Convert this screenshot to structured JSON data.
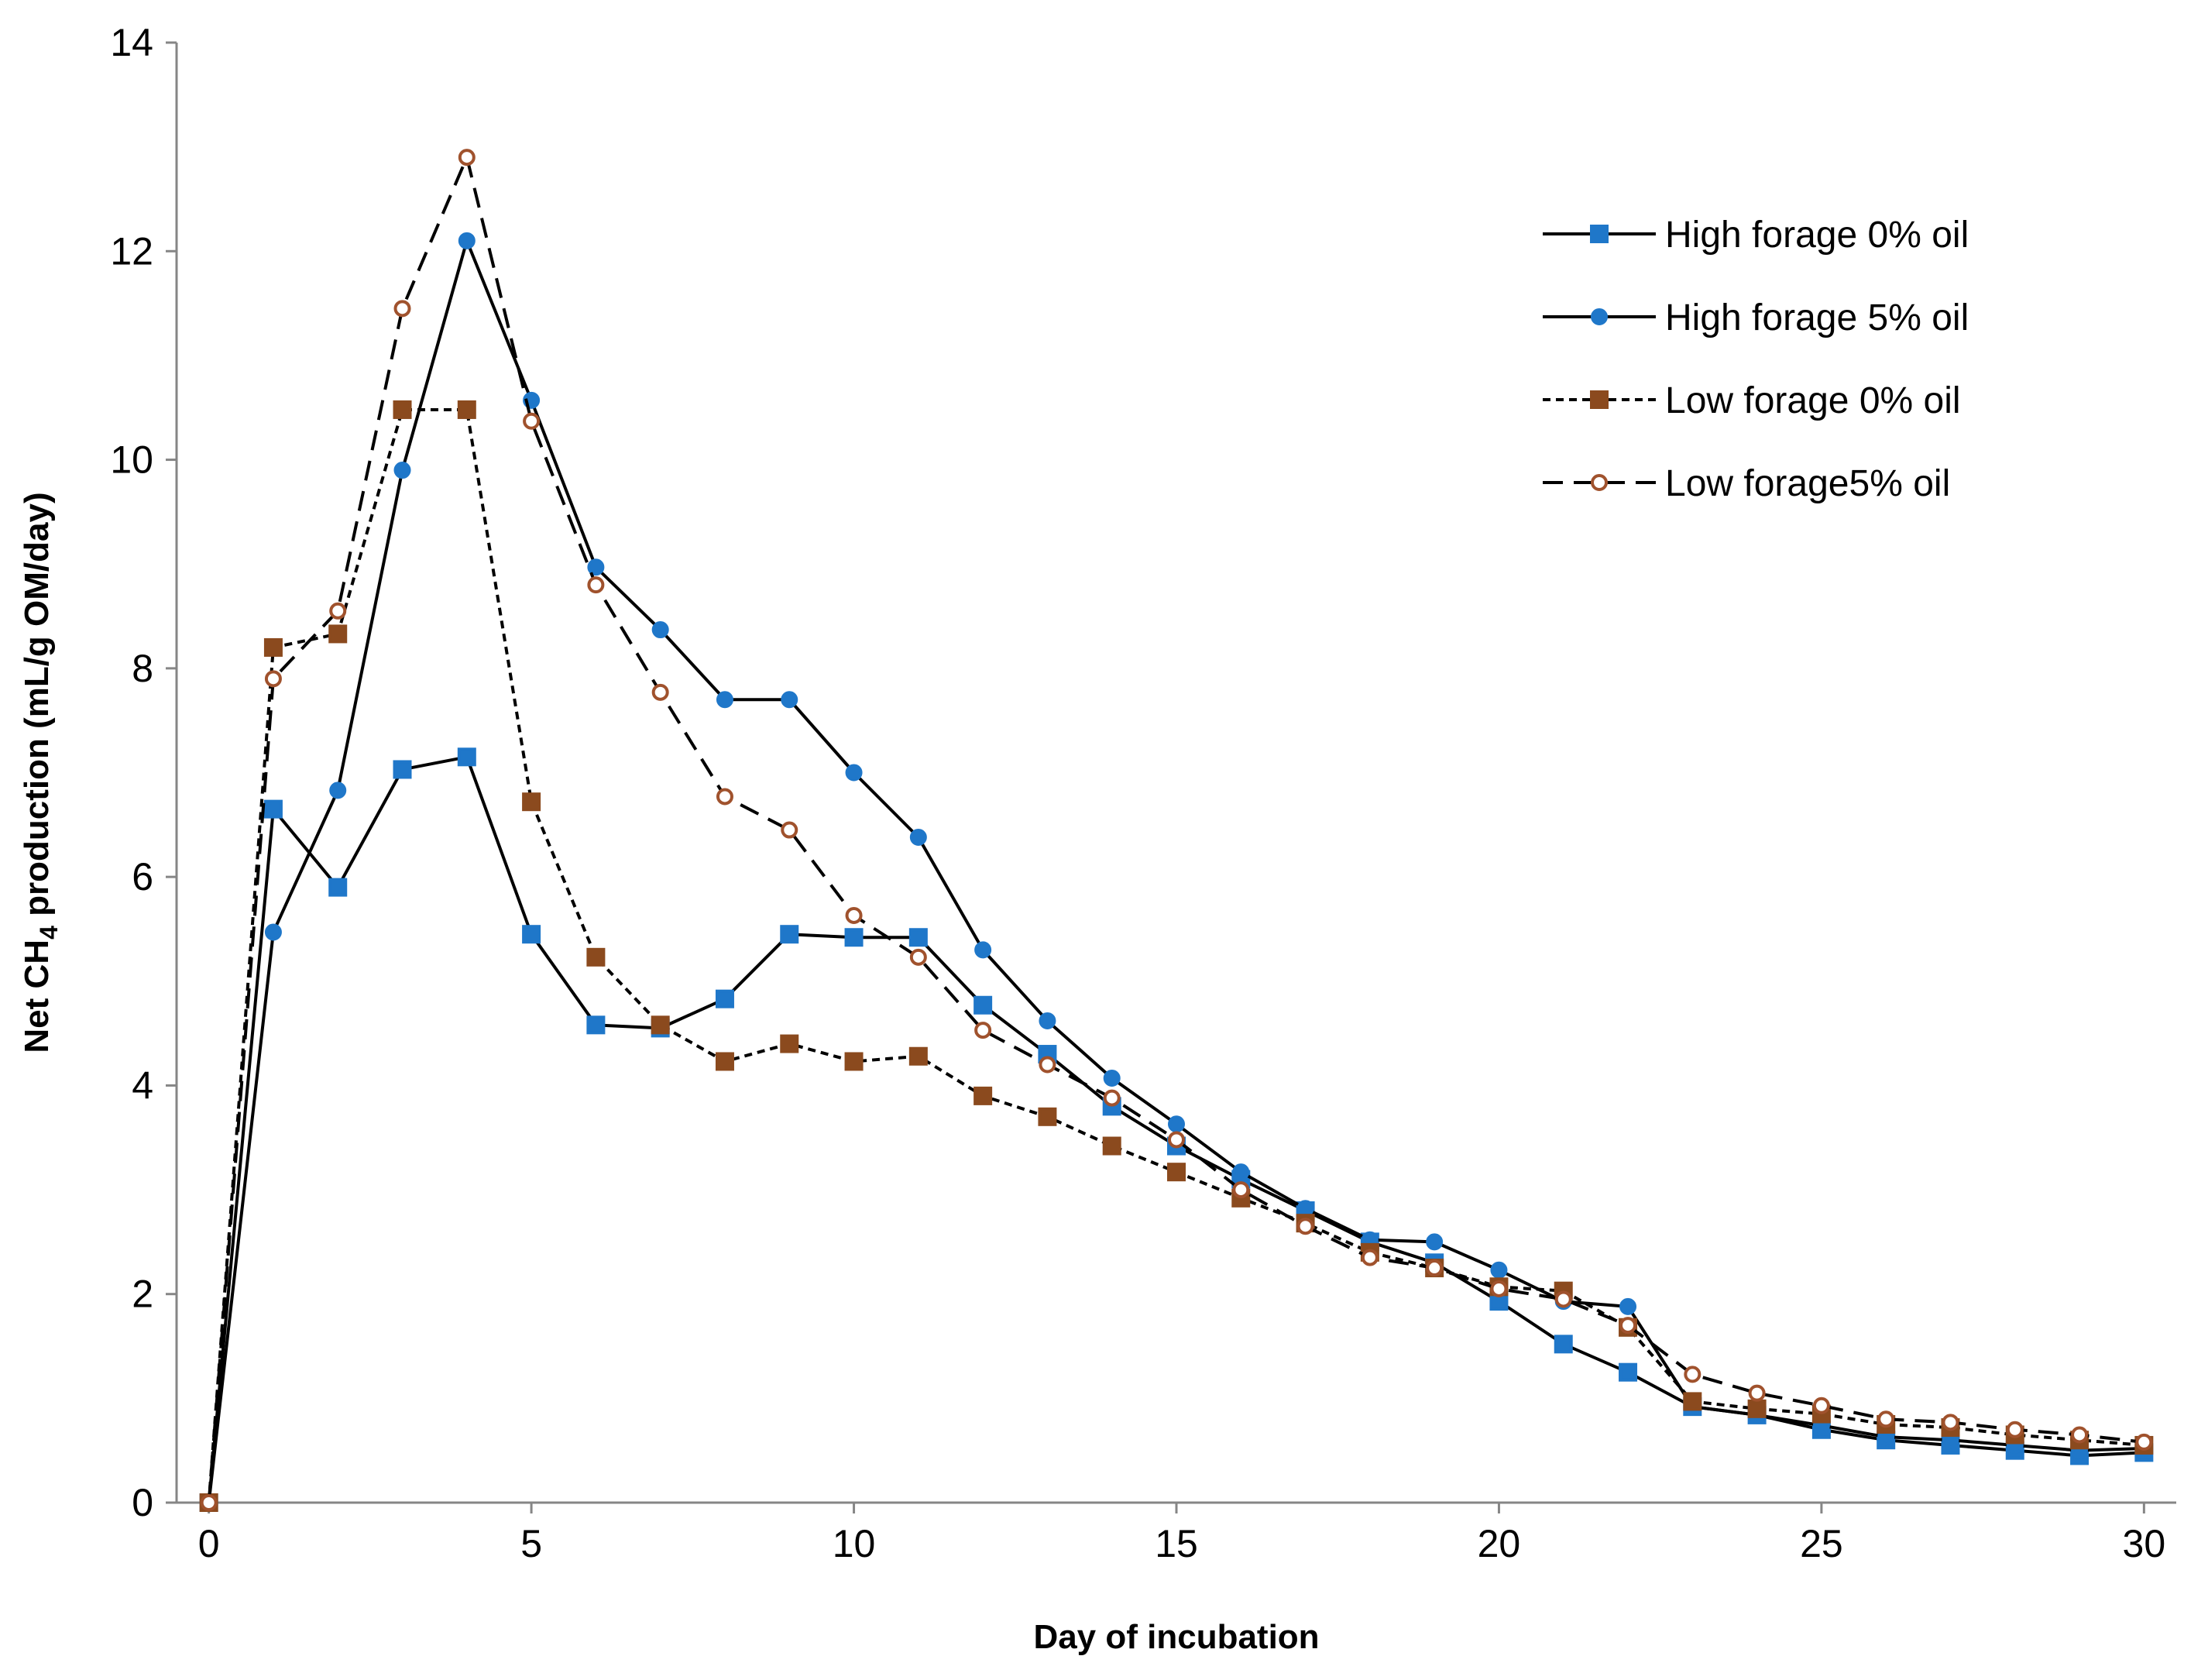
{
  "chart_data": {
    "type": "line",
    "title": "",
    "xlabel": "Day of incubation",
    "ylabel_prefix": "Net CH",
    "ylabel_subscript": "4",
    "ylabel_suffix": " production (mL/g OM/day)",
    "xlim": [
      -0.5,
      30.5
    ],
    "ylim": [
      0,
      14
    ],
    "xticks": [
      0,
      5,
      10,
      15,
      20,
      25,
      30
    ],
    "yticks": [
      0,
      2,
      4,
      6,
      8,
      10,
      12,
      14
    ],
    "grid": false,
    "legend_position": "top-right",
    "x": [
      0,
      1,
      2,
      3,
      4,
      5,
      6,
      7,
      8,
      9,
      10,
      11,
      12,
      13,
      14,
      15,
      16,
      17,
      18,
      19,
      20,
      21,
      22,
      23,
      24,
      25,
      26,
      27,
      28,
      29,
      30
    ],
    "series": [
      {
        "name": "High forage 0% oil",
        "line_style": "solid",
        "marker": "square",
        "marker_fill": "#1F77C9",
        "marker_stroke": "#1F77C9",
        "values": [
          0,
          6.65,
          5.9,
          7.03,
          7.15,
          5.45,
          4.58,
          4.55,
          4.83,
          5.45,
          5.42,
          5.42,
          4.77,
          4.3,
          3.8,
          3.42,
          3.1,
          2.8,
          2.5,
          2.3,
          1.93,
          1.52,
          1.25,
          0.92,
          0.84,
          0.7,
          0.6,
          0.55,
          0.5,
          0.45,
          0.48
        ]
      },
      {
        "name": "High forage 5% oil",
        "line_style": "solid",
        "marker": "circle",
        "marker_fill": "#1F77C9",
        "marker_stroke": "#1F77C9",
        "values": [
          0,
          5.47,
          6.83,
          9.9,
          12.1,
          10.57,
          8.97,
          8.37,
          7.7,
          7.7,
          7.0,
          6.38,
          5.3,
          4.62,
          4.07,
          3.63,
          3.17,
          2.82,
          2.52,
          2.5,
          2.23,
          1.93,
          1.88,
          0.92,
          0.84,
          0.74,
          0.63,
          0.6,
          0.55,
          0.5,
          0.52
        ]
      },
      {
        "name": "Low forage 0% oil",
        "line_style": "dotted",
        "marker": "square",
        "marker_fill": "#8B4A1E",
        "marker_stroke": "#8B4A1E",
        "values": [
          0,
          8.2,
          8.33,
          10.48,
          10.48,
          6.72,
          5.23,
          4.58,
          4.23,
          4.4,
          4.23,
          4.28,
          3.9,
          3.7,
          3.42,
          3.17,
          2.92,
          2.68,
          2.4,
          2.25,
          2.07,
          2.03,
          1.68,
          0.97,
          0.9,
          0.85,
          0.75,
          0.72,
          0.65,
          0.6,
          0.55
        ]
      },
      {
        "name": "Low forage5% oil",
        "line_style": "dashed",
        "marker": "circle",
        "marker_fill": "#FFFFFF",
        "marker_stroke": "#A0522D",
        "values": [
          0,
          7.9,
          8.55,
          11.45,
          12.9,
          10.37,
          8.8,
          7.77,
          6.77,
          6.45,
          5.63,
          5.23,
          4.53,
          4.2,
          3.88,
          3.48,
          3.0,
          2.65,
          2.35,
          2.25,
          2.05,
          1.95,
          1.7,
          1.23,
          1.05,
          0.93,
          0.8,
          0.77,
          0.7,
          0.65,
          0.58
        ]
      }
    ]
  }
}
